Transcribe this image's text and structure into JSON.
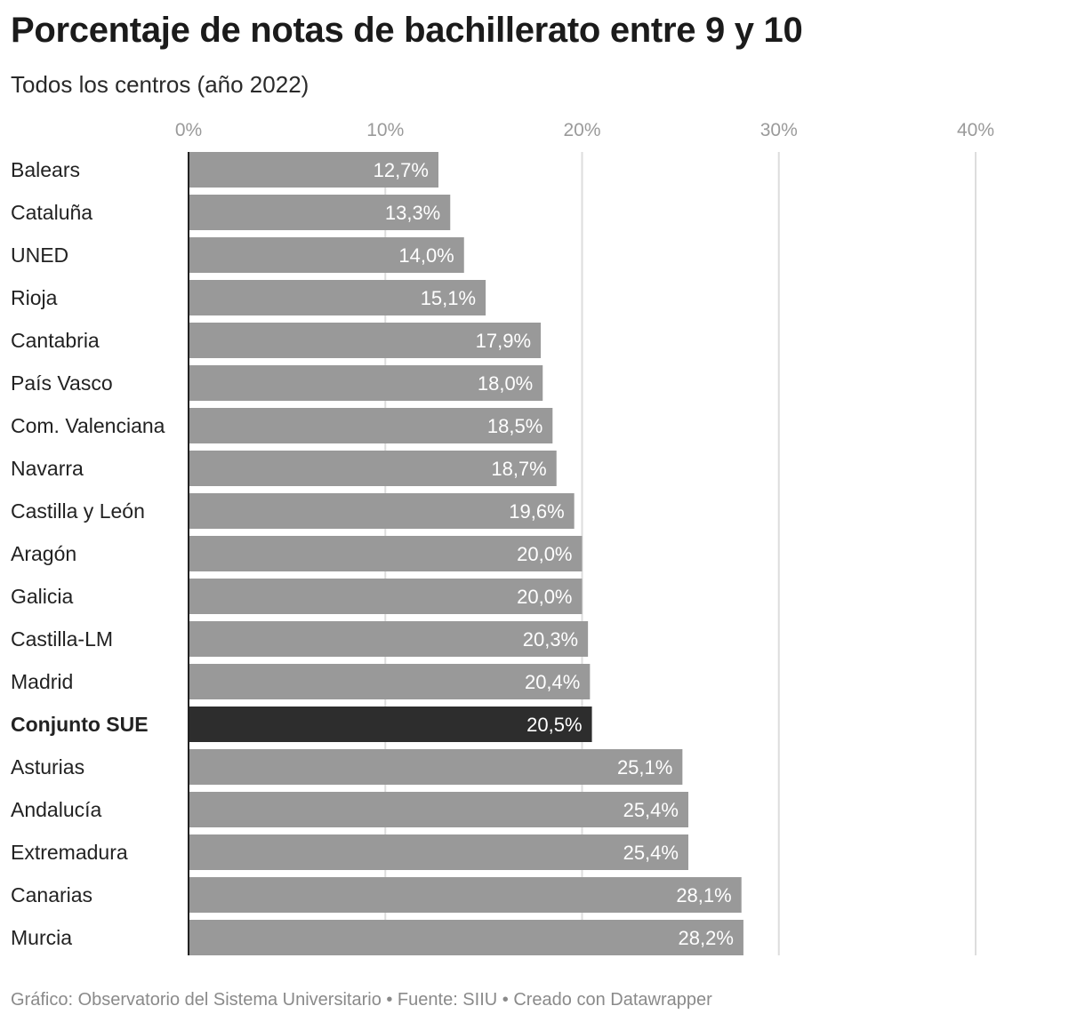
{
  "title": "Porcentaje de notas de bachillerato entre 9 y 10",
  "subtitle": "Todos los centros (año 2022)",
  "footer": "Gráfico: Observatorio del Sistema Universitario • Fuente: SIIU • Creado con Datawrapper",
  "colors": {
    "bar": "#999999",
    "highlight": "#2d2d2d",
    "grid": "#dddddd",
    "axis": "#222222"
  },
  "chart_data": {
    "type": "bar",
    "orientation": "horizontal",
    "xlim": [
      0,
      40
    ],
    "ticks": [
      0,
      10,
      20,
      30,
      40
    ],
    "tick_labels": [
      "0%",
      "10%",
      "20%",
      "30%",
      "40%"
    ],
    "grid": true,
    "categories": [
      "Balears",
      "Cataluña",
      "UNED",
      "Rioja",
      "Cantabria",
      "País Vasco",
      "Com. Valenciana",
      "Navarra",
      "Castilla y León",
      "Aragón",
      "Galicia",
      "Castilla-LM",
      "Madrid",
      "Conjunto SUE",
      "Asturias",
      "Andalucía",
      "Extremadura",
      "Canarias",
      "Murcia"
    ],
    "values": [
      12.7,
      13.3,
      14.0,
      15.1,
      17.9,
      18.0,
      18.5,
      18.7,
      19.6,
      20.0,
      20.0,
      20.3,
      20.4,
      20.5,
      25.1,
      25.4,
      25.4,
      28.1,
      28.2
    ],
    "value_labels": [
      "12,7%",
      "13,3%",
      "14,0%",
      "15,1%",
      "17,9%",
      "18,0%",
      "18,5%",
      "18,7%",
      "19,6%",
      "20,0%",
      "20,0%",
      "20,3%",
      "20,4%",
      "20,5%",
      "25,1%",
      "25,4%",
      "25,4%",
      "28,1%",
      "28,2%"
    ],
    "highlight": "Conjunto SUE"
  }
}
